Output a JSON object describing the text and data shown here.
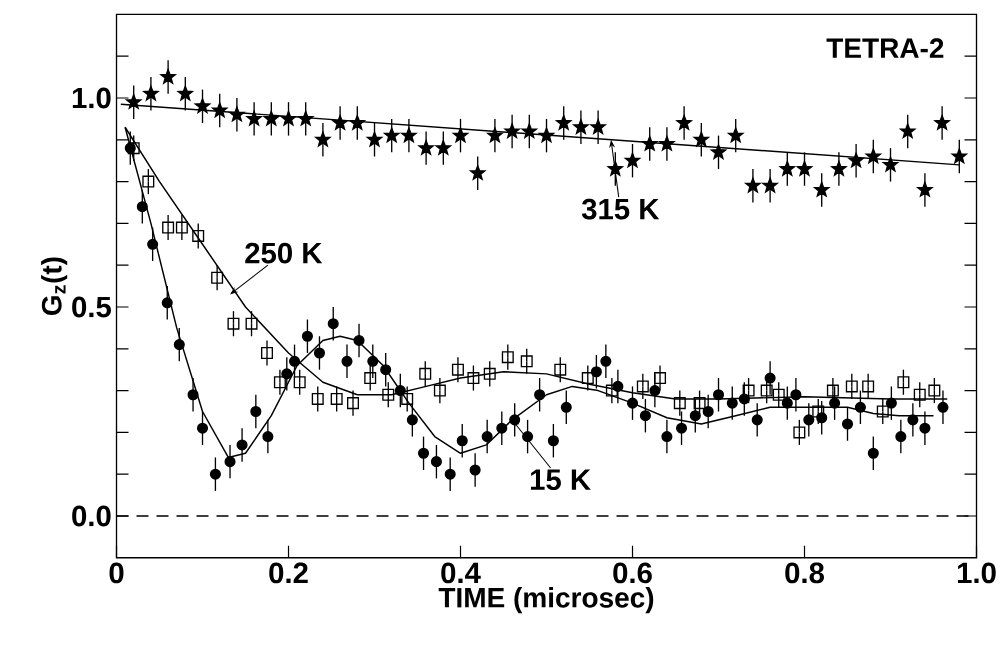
{
  "chart_data": {
    "type": "scatter",
    "xlabel": "TIME  (microsec)",
    "ylabel": "G$_{z}$(t)",
    "xlim": [
      0,
      1
    ],
    "ylim": [
      -0.1,
      1.2
    ],
    "xticks": [
      0,
      0.2,
      0.4,
      0.6,
      0.8,
      {
        "value": 1,
        "label": "1.0"
      }
    ],
    "yticks": [
      {
        "value": 0,
        "label": "0.0"
      },
      {
        "value": 0.1,
        "label": null
      },
      {
        "value": 0.2,
        "label": null
      },
      {
        "value": 0.3,
        "label": null
      },
      {
        "value": 0.4,
        "label": null
      },
      {
        "value": 0.5,
        "label": "0.5"
      },
      {
        "value": 0.6,
        "label": null
      },
      {
        "value": 0.7,
        "label": null
      },
      {
        "value": 0.8,
        "label": null
      },
      {
        "value": 0.9,
        "label": null
      },
      {
        "value": 1,
        "label": "1.0"
      },
      {
        "value": 1.1,
        "label": null
      }
    ],
    "ref_lines": [
      {
        "axis": "y",
        "value": 0,
        "line_style": "dashed"
      }
    ],
    "annotations": [
      "TETRA-2",
      {
        "text": "315 K",
        "x": 0.575,
        "y": 0.9
      },
      {
        "text": "250 K",
        "x": 0.132,
        "y": 0.53
      },
      {
        "text": "15 K",
        "x": 0.46,
        "y": 0.23
      }
    ],
    "series": [
      {
        "type": "scatter",
        "marker": "star",
        "color": "#000000",
        "x": [
          0.02,
          0.04,
          0.06,
          0.08,
          0.1,
          0.12,
          0.14,
          0.16,
          0.18,
          0.2,
          0.22,
          0.24,
          0.26,
          0.28,
          0.3,
          0.32,
          0.34,
          0.36,
          0.38,
          0.4,
          0.42,
          0.44,
          0.46,
          0.48,
          0.5,
          0.52,
          0.54,
          0.56,
          0.58,
          0.6,
          0.62,
          0.64,
          0.66,
          0.68,
          0.7,
          0.72,
          0.74,
          0.76,
          0.78,
          0.8,
          0.82,
          0.84,
          0.86,
          0.88,
          0.9,
          0.92,
          0.94,
          0.96,
          0.98
        ],
        "values": [
          0.99,
          1.01,
          1.05,
          1.01,
          0.98,
          0.97,
          0.96,
          0.95,
          0.95,
          0.95,
          0.95,
          0.9,
          0.94,
          0.94,
          0.9,
          0.91,
          0.91,
          0.88,
          0.88,
          0.91,
          0.82,
          0.91,
          0.92,
          0.92,
          0.91,
          0.94,
          0.93,
          0.93,
          0.83,
          0.85,
          0.89,
          0.89,
          0.94,
          0.9,
          0.87,
          0.91,
          0.79,
          0.79,
          0.83,
          0.83,
          0.78,
          0.83,
          0.85,
          0.86,
          0.84,
          0.92,
          0.78,
          0.94,
          0.86
        ],
        "errors": [
          0.04,
          0.04,
          0.04,
          0.04,
          0.04,
          0.04,
          0.04,
          0.04,
          0.04,
          0.04,
          0.04,
          0.04,
          0.04,
          0.04,
          0.04,
          0.04,
          0.04,
          0.04,
          0.04,
          0.04,
          0.04,
          0.04,
          0.04,
          0.04,
          0.04,
          0.04,
          0.04,
          0.04,
          0.04,
          0.04,
          0.04,
          0.04,
          0.04,
          0.04,
          0.04,
          0.04,
          0.04,
          0.04,
          0.04,
          0.04,
          0.04,
          0.04,
          0.04,
          0.04,
          0.04,
          0.04,
          0.04,
          0.04,
          0.04
        ]
      },
      {
        "type": "line",
        "marker": "none",
        "line_style": "solid",
        "color": "#000000",
        "x": [
          0.005,
          0.98
        ],
        "values": [
          0.985,
          0.84
        ]
      },
      {
        "type": "scatter",
        "marker": "square",
        "color": "#000000",
        "x": [
          0.02,
          0.037,
          0.06,
          0.076,
          0.095,
          0.117,
          0.136,
          0.157,
          0.175,
          0.19,
          0.213,
          0.234,
          0.256,
          0.275,
          0.295,
          0.316,
          0.338,
          0.359,
          0.376,
          0.397,
          0.415,
          0.434,
          0.455,
          0.477,
          0.516,
          0.548,
          0.576,
          0.612,
          0.632,
          0.655,
          0.678,
          0.735,
          0.756,
          0.77,
          0.794,
          0.816,
          0.833,
          0.855,
          0.874,
          0.891,
          0.915,
          0.934,
          0.951
        ],
        "values": [
          0.88,
          0.8,
          0.69,
          0.69,
          0.67,
          0.57,
          0.46,
          0.46,
          0.39,
          0.32,
          0.32,
          0.28,
          0.28,
          0.27,
          0.33,
          0.29,
          0.28,
          0.34,
          0.3,
          0.35,
          0.33,
          0.34,
          0.38,
          0.37,
          0.35,
          0.33,
          0.3,
          0.31,
          0.33,
          0.27,
          0.27,
          0.3,
          0.3,
          0.29,
          0.2,
          0.25,
          0.3,
          0.31,
          0.31,
          0.25,
          0.32,
          0.29,
          0.3
        ],
        "errors": [
          0.03,
          0.03,
          0.03,
          0.03,
          0.03,
          0.03,
          0.03,
          0.03,
          0.03,
          0.03,
          0.03,
          0.03,
          0.03,
          0.03,
          0.03,
          0.03,
          0.03,
          0.03,
          0.03,
          0.03,
          0.03,
          0.03,
          0.03,
          0.03,
          0.03,
          0.03,
          0.03,
          0.03,
          0.03,
          0.03,
          0.03,
          0.03,
          0.03,
          0.03,
          0.03,
          0.03,
          0.03,
          0.03,
          0.03,
          0.03,
          0.03,
          0.03,
          0.03
        ]
      },
      {
        "type": "line",
        "marker": "none",
        "line_style": "solid",
        "color": "#000000",
        "x": [
          0.01,
          0.05,
          0.1,
          0.15,
          0.2,
          0.24,
          0.28,
          0.32,
          0.36,
          0.4,
          0.45,
          0.5,
          0.55,
          0.6,
          0.65,
          0.7,
          0.8,
          0.9,
          0.966
        ],
        "values": [
          0.93,
          0.8,
          0.65,
          0.5,
          0.39,
          0.32,
          0.29,
          0.29,
          0.31,
          0.33,
          0.345,
          0.34,
          0.315,
          0.295,
          0.28,
          0.28,
          0.285,
          0.28,
          0.28
        ]
      },
      {
        "type": "scatter",
        "marker": "circle",
        "color": "#000000",
        "x": [
          0.016,
          0.03,
          0.042,
          0.059,
          0.073,
          0.089,
          0.1,
          0.115,
          0.132,
          0.146,
          0.162,
          0.176,
          0.198,
          0.207,
          0.222,
          0.236,
          0.252,
          0.268,
          0.282,
          0.298,
          0.313,
          0.33,
          0.344,
          0.357,
          0.372,
          0.388,
          0.402,
          0.417,
          0.431,
          0.448,
          0.463,
          0.478,
          0.492,
          0.508,
          0.523,
          0.558,
          0.569,
          0.583,
          0.6,
          0.615,
          0.626,
          0.64,
          0.657,
          0.673,
          0.688,
          0.7,
          0.716,
          0.73,
          0.745,
          0.76,
          0.78,
          0.79,
          0.805,
          0.82,
          0.835,
          0.85,
          0.865,
          0.88,
          0.901,
          0.912,
          0.926,
          0.94,
          0.961
        ],
        "values": [
          0.88,
          0.74,
          0.65,
          0.51,
          0.41,
          0.29,
          0.21,
          0.1,
          0.13,
          0.17,
          0.25,
          0.19,
          0.34,
          0.37,
          0.43,
          0.39,
          0.46,
          0.37,
          0.42,
          0.37,
          0.35,
          0.3,
          0.23,
          0.15,
          0.13,
          0.1,
          0.18,
          0.11,
          0.19,
          0.21,
          0.23,
          0.19,
          0.29,
          0.18,
          0.26,
          0.345,
          0.37,
          0.31,
          0.27,
          0.24,
          0.3,
          0.19,
          0.21,
          0.24,
          0.25,
          0.29,
          0.27,
          0.28,
          0.23,
          0.33,
          0.27,
          0.29,
          0.23,
          0.235,
          0.27,
          0.22,
          0.26,
          0.15,
          0.27,
          0.19,
          0.23,
          0.21,
          0.26
        ],
        "errors": [
          0.04,
          0.04,
          0.04,
          0.04,
          0.04,
          0.04,
          0.04,
          0.04,
          0.04,
          0.04,
          0.04,
          0.04,
          0.04,
          0.04,
          0.04,
          0.04,
          0.04,
          0.04,
          0.04,
          0.04,
          0.04,
          0.04,
          0.04,
          0.04,
          0.04,
          0.04,
          0.04,
          0.04,
          0.04,
          0.04,
          0.04,
          0.04,
          0.04,
          0.04,
          0.04,
          0.04,
          0.04,
          0.04,
          0.04,
          0.04,
          0.04,
          0.04,
          0.04,
          0.04,
          0.04,
          0.04,
          0.04,
          0.04,
          0.04,
          0.04,
          0.04,
          0.04,
          0.04,
          0.04,
          0.04,
          0.04,
          0.04,
          0.04,
          0.04,
          0.04,
          0.04,
          0.04,
          0.04
        ]
      },
      {
        "type": "line",
        "marker": "none",
        "line_style": "solid",
        "color": "#000000",
        "x": [
          0.01,
          0.04,
          0.07,
          0.1,
          0.13,
          0.15,
          0.18,
          0.21,
          0.24,
          0.26,
          0.28,
          0.31,
          0.34,
          0.37,
          0.4,
          0.43,
          0.46,
          0.5,
          0.53,
          0.56,
          0.6,
          0.64,
          0.68,
          0.72,
          0.76,
          0.8,
          0.85,
          0.88,
          0.91,
          0.95
        ],
        "values": [
          0.93,
          0.7,
          0.45,
          0.25,
          0.14,
          0.15,
          0.24,
          0.36,
          0.42,
          0.43,
          0.42,
          0.36,
          0.27,
          0.19,
          0.15,
          0.17,
          0.23,
          0.29,
          0.31,
          0.3,
          0.27,
          0.235,
          0.22,
          0.24,
          0.26,
          0.26,
          0.26,
          0.245,
          0.24,
          0.24
        ]
      }
    ]
  }
}
